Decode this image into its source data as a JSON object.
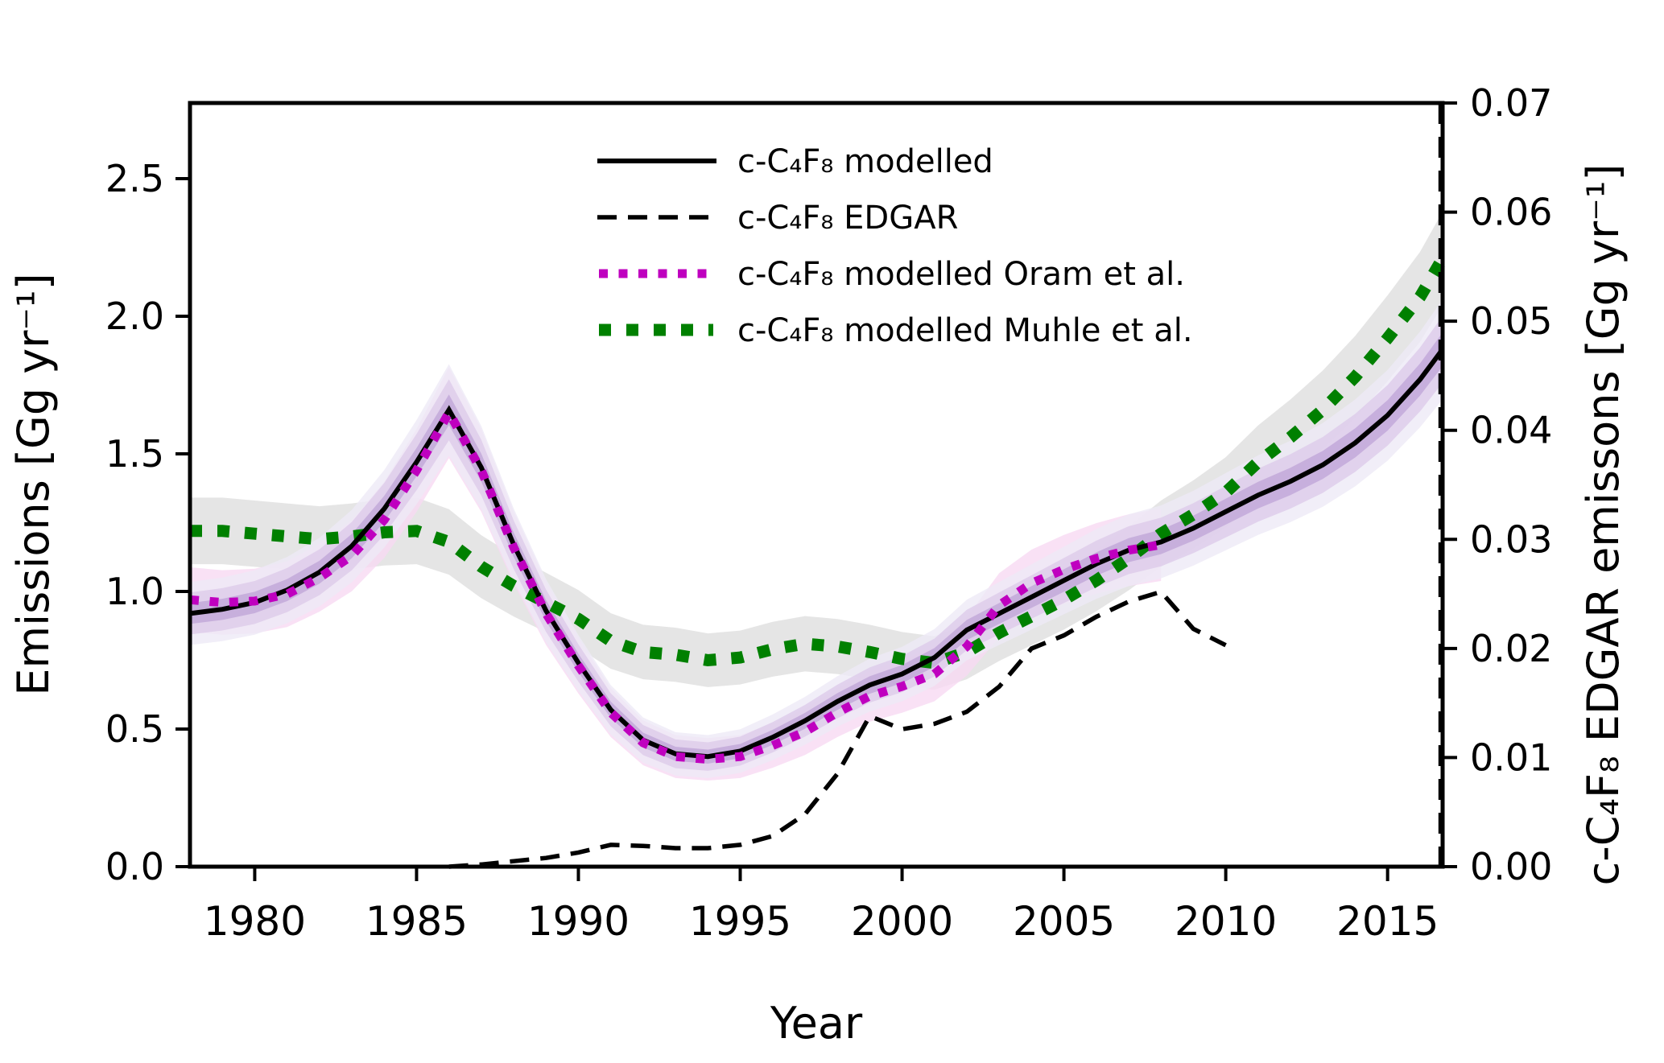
{
  "chart_data": {
    "type": "line",
    "title": "",
    "xlabel": "Year",
    "ylabel_left": "Emissions [Gg yr⁻¹]",
    "ylabel_right": "c-C₄F₈ EDGAR emissons [Gg yr⁻¹]",
    "xlim": [
      1978,
      2016.7
    ],
    "ylim_left": [
      0,
      2.775
    ],
    "ylim_right": [
      0,
      0.07
    ],
    "grid": false,
    "legend_position": "upper-center-inside",
    "vline_year": 2016.62,
    "x_ticks": [
      {
        "value": 1980,
        "label": "1980"
      },
      {
        "value": 1985,
        "label": "1985"
      },
      {
        "value": 1990,
        "label": "1990"
      },
      {
        "value": 1995,
        "label": "1995"
      },
      {
        "value": 2000,
        "label": "2000"
      },
      {
        "value": 2005,
        "label": "2005"
      },
      {
        "value": 2010,
        "label": "2010"
      },
      {
        "value": 2015,
        "label": "2015"
      }
    ],
    "y_ticks_left": [
      {
        "value": 0.0,
        "label": "0.0"
      },
      {
        "value": 0.5,
        "label": "0.5"
      },
      {
        "value": 1.0,
        "label": "1.0"
      },
      {
        "value": 1.5,
        "label": "1.5"
      },
      {
        "value": 2.0,
        "label": "2.0"
      },
      {
        "value": 2.5,
        "label": "2.5"
      }
    ],
    "y_ticks_right": [
      {
        "value": 0.0,
        "label": "0.00"
      },
      {
        "value": 0.01,
        "label": "0.01"
      },
      {
        "value": 0.02,
        "label": "0.02"
      },
      {
        "value": 0.03,
        "label": "0.03"
      },
      {
        "value": 0.04,
        "label": "0.04"
      },
      {
        "value": 0.05,
        "label": "0.05"
      },
      {
        "value": 0.06,
        "label": "0.06"
      },
      {
        "value": 0.07,
        "label": "0.07"
      }
    ],
    "series": [
      {
        "key": "modelled",
        "label": "c-C₄F₈ modelled",
        "color": "#000000",
        "style": "solid",
        "axis": "left",
        "band_levels": [
          {
            "color": "#edeaf6",
            "base": 0.05,
            "scale": 0.07
          },
          {
            "color": "#ddcaea",
            "base": 0.033,
            "scale": 0.047
          },
          {
            "color": "#c0a6d8",
            "base": 0.016,
            "scale": 0.024
          }
        ],
        "points": [
          [
            1978,
            0.92
          ],
          [
            1979,
            0.935
          ],
          [
            1980,
            0.96
          ],
          [
            1981,
            1.005
          ],
          [
            1982,
            1.07
          ],
          [
            1983,
            1.165
          ],
          [
            1984,
            1.3
          ],
          [
            1985,
            1.47
          ],
          [
            1986,
            1.66
          ],
          [
            1987,
            1.45
          ],
          [
            1988,
            1.17
          ],
          [
            1989,
            0.93
          ],
          [
            1990,
            0.74
          ],
          [
            1991,
            0.57
          ],
          [
            1992,
            0.46
          ],
          [
            1993,
            0.41
          ],
          [
            1994,
            0.4
          ],
          [
            1995,
            0.42
          ],
          [
            1996,
            0.47
          ],
          [
            1997,
            0.53
          ],
          [
            1998,
            0.6
          ],
          [
            1999,
            0.66
          ],
          [
            2000,
            0.7
          ],
          [
            2001,
            0.76
          ],
          [
            2002,
            0.86
          ],
          [
            2003,
            0.92
          ],
          [
            2004,
            0.98
          ],
          [
            2005,
            1.04
          ],
          [
            2006,
            1.1
          ],
          [
            2007,
            1.15
          ],
          [
            2008,
            1.18
          ],
          [
            2009,
            1.23
          ],
          [
            2010,
            1.29
          ],
          [
            2011,
            1.35
          ],
          [
            2012,
            1.4
          ],
          [
            2013,
            1.46
          ],
          [
            2014,
            1.54
          ],
          [
            2015,
            1.64
          ],
          [
            2016,
            1.77
          ],
          [
            2016.7,
            1.88
          ]
        ]
      },
      {
        "key": "edgar",
        "label": "c-C₄F₈ EDGAR",
        "color": "#000000",
        "style": "dashed",
        "axis": "right",
        "points": [
          [
            1986,
            0.0
          ],
          [
            1987,
            0.0002
          ],
          [
            1988,
            0.0005
          ],
          [
            1989,
            0.0008
          ],
          [
            1990,
            0.0013
          ],
          [
            1991,
            0.002
          ],
          [
            1992,
            0.0019
          ],
          [
            1993,
            0.0017
          ],
          [
            1994,
            0.0017
          ],
          [
            1995,
            0.002
          ],
          [
            1996,
            0.0028
          ],
          [
            1997,
            0.0048
          ],
          [
            1998,
            0.0085
          ],
          [
            1999,
            0.0138
          ],
          [
            2000,
            0.0126
          ],
          [
            2001,
            0.0131
          ],
          [
            2002,
            0.0142
          ],
          [
            2003,
            0.0165
          ],
          [
            2004,
            0.02
          ],
          [
            2005,
            0.0212
          ],
          [
            2006,
            0.0229
          ],
          [
            2007,
            0.0243
          ],
          [
            2008,
            0.0252
          ],
          [
            2009,
            0.0218
          ],
          [
            2010,
            0.0203
          ]
        ]
      },
      {
        "key": "oram",
        "label": "c-C₄F₈ modelled Oram et al.",
        "color": "#bf00bf",
        "style": "dotted-sm",
        "axis": "left",
        "band_levels": [
          {
            "color": "#f7d9f2",
            "base": 0.05,
            "scale": 0.07
          }
        ],
        "points": [
          [
            1978,
            0.97
          ],
          [
            1979,
            0.96
          ],
          [
            1980,
            0.965
          ],
          [
            1981,
            0.99
          ],
          [
            1982,
            1.05
          ],
          [
            1983,
            1.13
          ],
          [
            1984,
            1.26
          ],
          [
            1985,
            1.44
          ],
          [
            1986,
            1.65
          ],
          [
            1987,
            1.44
          ],
          [
            1988,
            1.16
          ],
          [
            1989,
            0.92
          ],
          [
            1990,
            0.73
          ],
          [
            1991,
            0.56
          ],
          [
            1992,
            0.45
          ],
          [
            1993,
            0.4
          ],
          [
            1994,
            0.39
          ],
          [
            1995,
            0.4
          ],
          [
            1996,
            0.44
          ],
          [
            1997,
            0.49
          ],
          [
            1998,
            0.56
          ],
          [
            1999,
            0.62
          ],
          [
            2000,
            0.655
          ],
          [
            2001,
            0.7
          ],
          [
            2002,
            0.8
          ],
          [
            2003,
            0.95
          ],
          [
            2004,
            1.03
          ],
          [
            2005,
            1.08
          ],
          [
            2006,
            1.12
          ],
          [
            2007,
            1.15
          ],
          [
            2008,
            1.17
          ]
        ]
      },
      {
        "key": "muhle",
        "label": "c-C₄F₈ modelled Muhle et al.",
        "color": "#008000",
        "style": "dotted-lg",
        "axis": "left",
        "band_levels": [
          {
            "color": "#dedede",
            "base": 0.06,
            "scale": 0.05
          }
        ],
        "points": [
          [
            1978,
            1.22
          ],
          [
            1979,
            1.22
          ],
          [
            1980,
            1.21
          ],
          [
            1981,
            1.2
          ],
          [
            1982,
            1.19
          ],
          [
            1983,
            1.2
          ],
          [
            1984,
            1.215
          ],
          [
            1985,
            1.22
          ],
          [
            1986,
            1.18
          ],
          [
            1987,
            1.09
          ],
          [
            1988,
            1.02
          ],
          [
            1989,
            0.96
          ],
          [
            1990,
            0.9
          ],
          [
            1991,
            0.82
          ],
          [
            1992,
            0.78
          ],
          [
            1993,
            0.77
          ],
          [
            1994,
            0.75
          ],
          [
            1995,
            0.76
          ],
          [
            1996,
            0.79
          ],
          [
            1997,
            0.81
          ],
          [
            1998,
            0.8
          ],
          [
            1999,
            0.78
          ],
          [
            2000,
            0.755
          ],
          [
            2001,
            0.74
          ],
          [
            2002,
            0.78
          ],
          [
            2003,
            0.85
          ],
          [
            2004,
            0.91
          ],
          [
            2005,
            0.97
          ],
          [
            2006,
            1.04
          ],
          [
            2007,
            1.12
          ],
          [
            2008,
            1.21
          ],
          [
            2009,
            1.28
          ],
          [
            2010,
            1.36
          ],
          [
            2011,
            1.47
          ],
          [
            2012,
            1.56
          ],
          [
            2013,
            1.66
          ],
          [
            2014,
            1.78
          ],
          [
            2015,
            1.92
          ],
          [
            2016,
            2.07
          ],
          [
            2016.7,
            2.21
          ]
        ]
      }
    ]
  }
}
